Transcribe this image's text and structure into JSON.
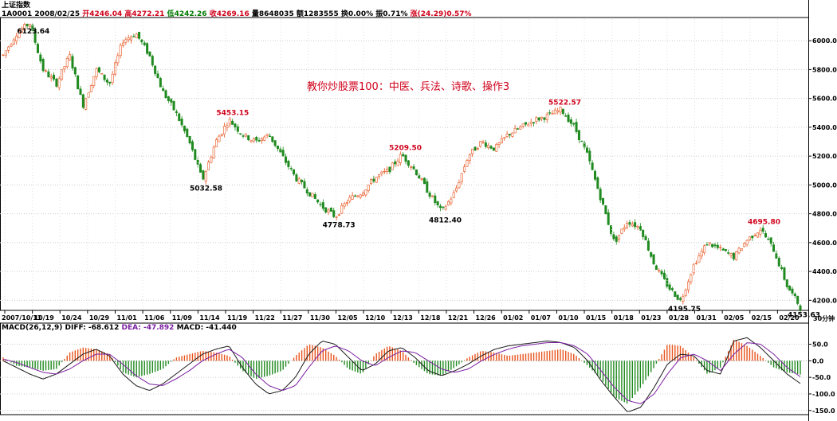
{
  "header": {
    "name": "上证指数",
    "code": "1A0001",
    "date": "2008/02/25",
    "open_label": "开",
    "open": "4246.04",
    "high_label": "高",
    "high": "4272.21",
    "low_label": "低",
    "low": "4242.26",
    "close_label": "收",
    "close": "4269.16",
    "volume_label": "量",
    "volume": "8648035",
    "amount_label": "额",
    "amount": "1283555",
    "change_label": "换",
    "change": "0.00%",
    "amp_label": "振",
    "amp": "0.71%",
    "pct_label": "涨",
    "pct": "(24.29)0.57%"
  },
  "title": "教你炒股票100：中医、兵法、诗歌、操作3",
  "period_label": "30分钟",
  "macd_header": {
    "label": "MACD(26,12,9)",
    "diff": "DIFF: -68.612",
    "dea": "DEA: -47.892",
    "macd": "MACD: -41.440"
  },
  "colors": {
    "up": "#e8531c",
    "down": "#1f8a1f",
    "diff": "#1a1a1a",
    "dea": "#7b1fa2",
    "red_text": "#d0021b"
  },
  "chart_data": [
    {
      "type": "candlestick",
      "x_ticks": [
        "2007/10/11",
        "10/19",
        "10/24",
        "10/29",
        "11/01",
        "11/06",
        "11/09",
        "11/14",
        "11/19",
        "11/22",
        "11/27",
        "11/30",
        "12/05",
        "12/10",
        "12/13",
        "12/18",
        "12/21",
        "12/26",
        "01/02",
        "01/07",
        "01/10",
        "01/15",
        "01/18",
        "01/23",
        "01/28",
        "01/31",
        "02/05",
        "02/15",
        "02/20"
      ],
      "y_ticks": [
        4200.0,
        4400.0,
        4600.0,
        4800.0,
        5000.0,
        5200.0,
        5400.0,
        5600.0,
        5800.0,
        6000.0
      ],
      "ylim": [
        4130,
        6150
      ],
      "annotations": [
        {
          "text": "6123.64",
          "value": 6123.64,
          "tick": "2007/10/11",
          "color": "#000000"
        },
        {
          "text": "5032.58",
          "value": 5032.58,
          "tick": "11/09",
          "color": "#000000"
        },
        {
          "text": "5453.15",
          "value": 5453.15,
          "tick": "11/14",
          "color": "#d0021b"
        },
        {
          "text": "4778.73",
          "value": 4778.73,
          "tick": "11/27",
          "color": "#000000"
        },
        {
          "text": "5209.50",
          "value": 5209.5,
          "tick": "12/10",
          "color": "#d0021b"
        },
        {
          "text": "4812.40",
          "value": 4812.4,
          "tick": "12/18",
          "color": "#000000"
        },
        {
          "text": "5522.57",
          "value": 5522.57,
          "tick": "01/10",
          "color": "#d0021b"
        },
        {
          "text": "4195.75",
          "value": 4195.75,
          "tick": "01/31",
          "color": "#000000"
        },
        {
          "text": "4695.80",
          "value": 4695.8,
          "tick": "02/15",
          "color": "#d0021b"
        },
        {
          "text": "4153.63",
          "value": 4153.63,
          "tick": "02/20",
          "color": "#000000"
        }
      ],
      "price_path": [
        [
          0,
          5900
        ],
        [
          1,
          6050
        ],
        [
          2,
          6123.64
        ],
        [
          3,
          5800
        ],
        [
          4,
          5700
        ],
        [
          5,
          5900
        ],
        [
          6,
          5550
        ],
        [
          7,
          5800
        ],
        [
          8,
          5700
        ],
        [
          9,
          6000
        ],
        [
          10,
          6050
        ],
        [
          11,
          5900
        ],
        [
          12,
          5650
        ],
        [
          13,
          5500
        ],
        [
          14,
          5300
        ],
        [
          15,
          5032.58
        ],
        [
          16,
          5300
        ],
        [
          17,
          5453.15
        ],
        [
          18,
          5350
        ],
        [
          19,
          5300
        ],
        [
          20,
          5350
        ],
        [
          21,
          5200
        ],
        [
          22,
          5050
        ],
        [
          23,
          4950
        ],
        [
          24,
          4850
        ],
        [
          25,
          4778.73
        ],
        [
          26,
          4900
        ],
        [
          27,
          4950
        ],
        [
          28,
          5050
        ],
        [
          29,
          5100
        ],
        [
          30,
          5209.5
        ],
        [
          31,
          5100
        ],
        [
          32,
          4950
        ],
        [
          33,
          4812.4
        ],
        [
          34,
          4950
        ],
        [
          35,
          5200
        ],
        [
          36,
          5300
        ],
        [
          37,
          5250
        ],
        [
          38,
          5350
        ],
        [
          39,
          5400
        ],
        [
          40,
          5450
        ],
        [
          41,
          5480
        ],
        [
          42,
          5522.57
        ],
        [
          43,
          5400
        ],
        [
          44,
          5200
        ],
        [
          45,
          4900
        ],
        [
          46,
          4600
        ],
        [
          47,
          4750
        ],
        [
          48,
          4700
        ],
        [
          49,
          4450
        ],
        [
          50,
          4300
        ],
        [
          51,
          4195.75
        ],
        [
          52,
          4450
        ],
        [
          53,
          4600
        ],
        [
          54,
          4550
        ],
        [
          55,
          4500
        ],
        [
          56,
          4620
        ],
        [
          57,
          4695.8
        ],
        [
          58,
          4550
        ],
        [
          59,
          4300
        ],
        [
          60,
          4153.63
        ]
      ]
    },
    {
      "type": "bar+line",
      "name": "MACD",
      "y_ticks": [
        50.0,
        0.0,
        -50.0,
        -100.0,
        -150.0
      ],
      "ylim": [
        -165,
        85
      ],
      "macd_bars": [
        10,
        -15,
        -20,
        -30,
        -25,
        25,
        40,
        35,
        20,
        -35,
        -50,
        -40,
        -25,
        10,
        20,
        30,
        25,
        15,
        -30,
        -55,
        -45,
        -30,
        15,
        50,
        40,
        15,
        -25,
        -40,
        20,
        45,
        30,
        -10,
        -40,
        -45,
        -20,
        10,
        30,
        25,
        15,
        20,
        25,
        30,
        35,
        20,
        -15,
        -55,
        -110,
        -130,
        -80,
        -20,
        50,
        45,
        10,
        -40,
        -20,
        65,
        45,
        15,
        -20,
        -35,
        -41.44
      ],
      "diff_line": [
        0,
        -20,
        -40,
        -55,
        -40,
        -10,
        20,
        35,
        15,
        -40,
        -75,
        -90,
        -70,
        -40,
        -10,
        20,
        35,
        45,
        -20,
        -70,
        -100,
        -90,
        -50,
        20,
        60,
        50,
        10,
        -30,
        -10,
        30,
        40,
        10,
        -30,
        -45,
        -30,
        -10,
        15,
        35,
        45,
        50,
        55,
        60,
        55,
        40,
        0,
        -60,
        -110,
        -155,
        -140,
        -80,
        -10,
        20,
        15,
        -30,
        -40,
        60,
        70,
        40,
        0,
        -40,
        -68.612
      ],
      "dea_line": [
        5,
        -5,
        -20,
        -35,
        -40,
        -25,
        0,
        20,
        20,
        -10,
        -45,
        -70,
        -75,
        -55,
        -30,
        0,
        20,
        35,
        10,
        -40,
        -75,
        -90,
        -75,
        -20,
        30,
        45,
        30,
        0,
        -15,
        10,
        30,
        25,
        0,
        -25,
        -35,
        -25,
        0,
        20,
        35,
        45,
        50,
        55,
        55,
        45,
        20,
        -30,
        -80,
        -120,
        -130,
        -100,
        -40,
        10,
        20,
        0,
        -30,
        20,
        55,
        50,
        20,
        -20,
        -47.892
      ]
    }
  ]
}
